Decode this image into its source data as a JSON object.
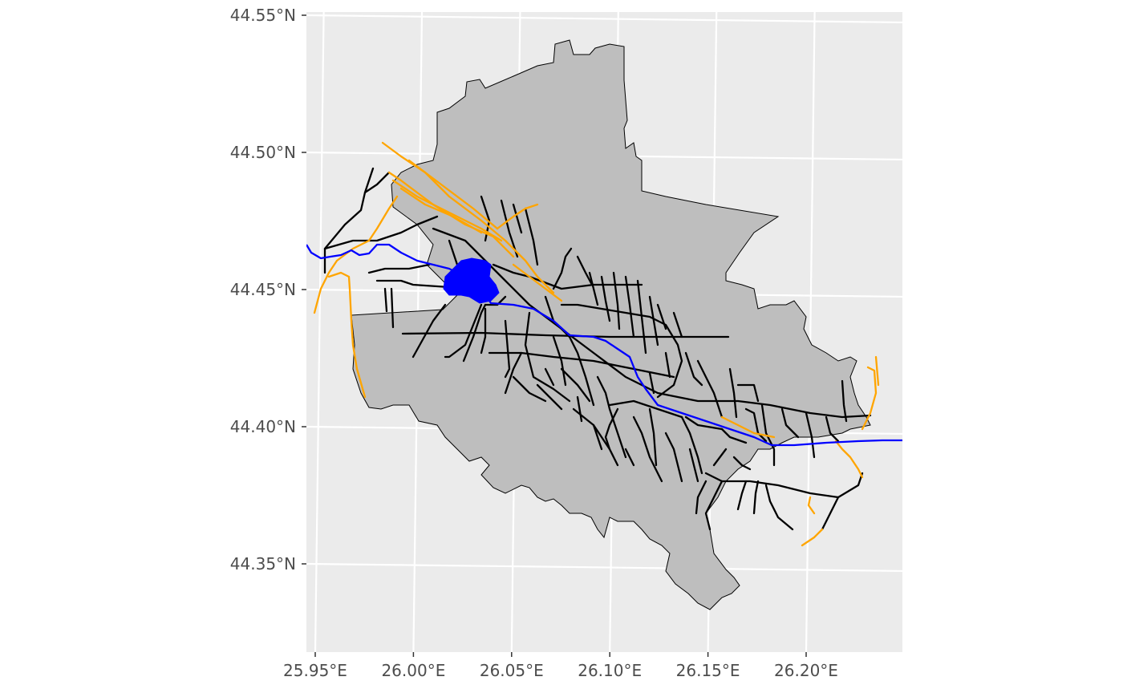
{
  "map": {
    "projection": "latitude/longitude graticule",
    "lon_range": [
      25.945,
      26.248
    ],
    "lat_range": [
      44.318,
      44.553
    ],
    "x_ticks": [
      {
        "value": 25.95,
        "label": "25.95°E"
      },
      {
        "value": 26.0,
        "label": "26.00°E"
      },
      {
        "value": 26.05,
        "label": "26.05°E"
      },
      {
        "value": 26.1,
        "label": "26.10°E"
      },
      {
        "value": 26.15,
        "label": "26.15°E"
      },
      {
        "value": 26.2,
        "label": "26.20°E"
      }
    ],
    "y_ticks": [
      {
        "value": 44.35,
        "label": "44.35°N"
      },
      {
        "value": 44.4,
        "label": "44.40°N"
      },
      {
        "value": 44.45,
        "label": "44.45°N"
      },
      {
        "value": 44.5,
        "label": "44.50°N"
      },
      {
        "value": 44.55,
        "label": "44.55°N"
      }
    ],
    "colors": {
      "panel_background": "#ebebeb",
      "graticule": "#ffffff",
      "boundary_fill": "#bebebe",
      "boundary_stroke": "#000000",
      "roads": "#000000",
      "railways": "#ffa500",
      "water": "#0000ff",
      "axis_text": "#4d4d4d"
    },
    "layers": [
      "city-boundary",
      "roads",
      "railways",
      "river",
      "lake"
    ]
  }
}
